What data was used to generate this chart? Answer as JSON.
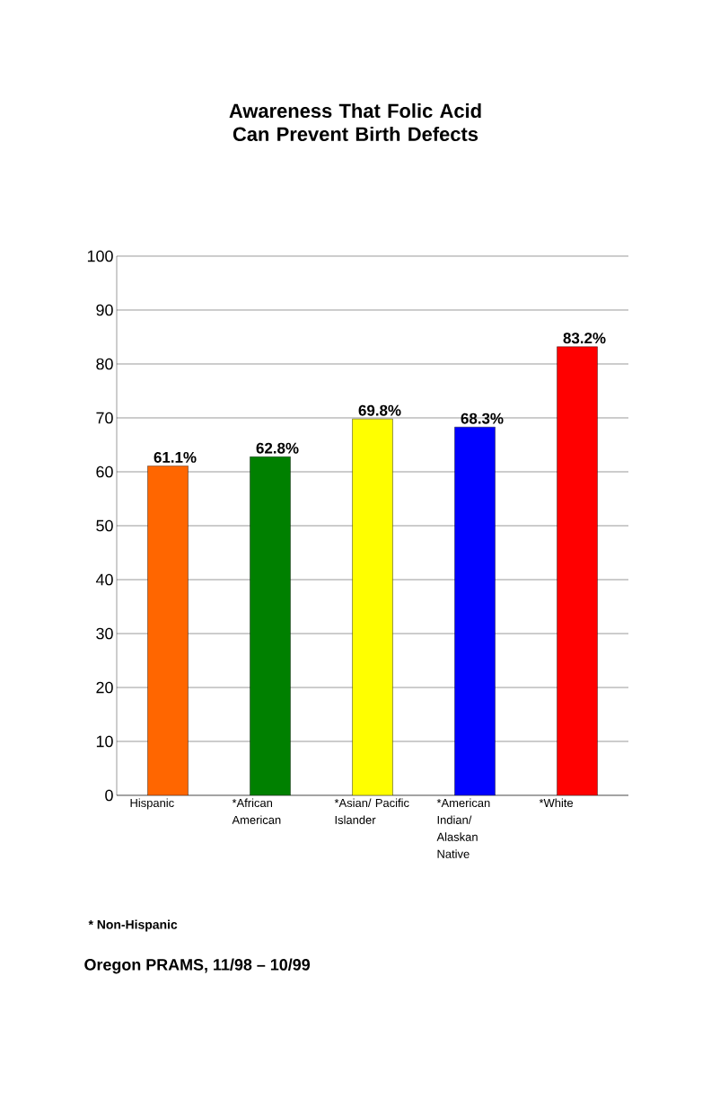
{
  "chart_data": {
    "type": "bar",
    "title": "Awareness That Folic Acid Can Prevent Birth Defects",
    "categories": [
      "Hispanic",
      "*African American",
      "*Asian/ Pacific Islander",
      "*American Indian/ Alaskan Native",
      "*White"
    ],
    "values": [
      61.1,
      62.8,
      69.8,
      68.3,
      83.2
    ],
    "colors": [
      "#ff6600",
      "#008000",
      "#ffff00",
      "#0000ff",
      "#ff0000"
    ],
    "value_labels": [
      "61.1%",
      "62.8%",
      "69.8%",
      "68.3%",
      "83.2%"
    ],
    "ylim": [
      0,
      100
    ],
    "yticks": [
      0,
      10,
      20,
      30,
      40,
      50,
      60,
      70,
      80,
      90,
      100
    ],
    "grid": "y",
    "annotations": [
      "* Non-Hispanic",
      "Oregon PRAMS, 11/98 – 10/99"
    ]
  }
}
